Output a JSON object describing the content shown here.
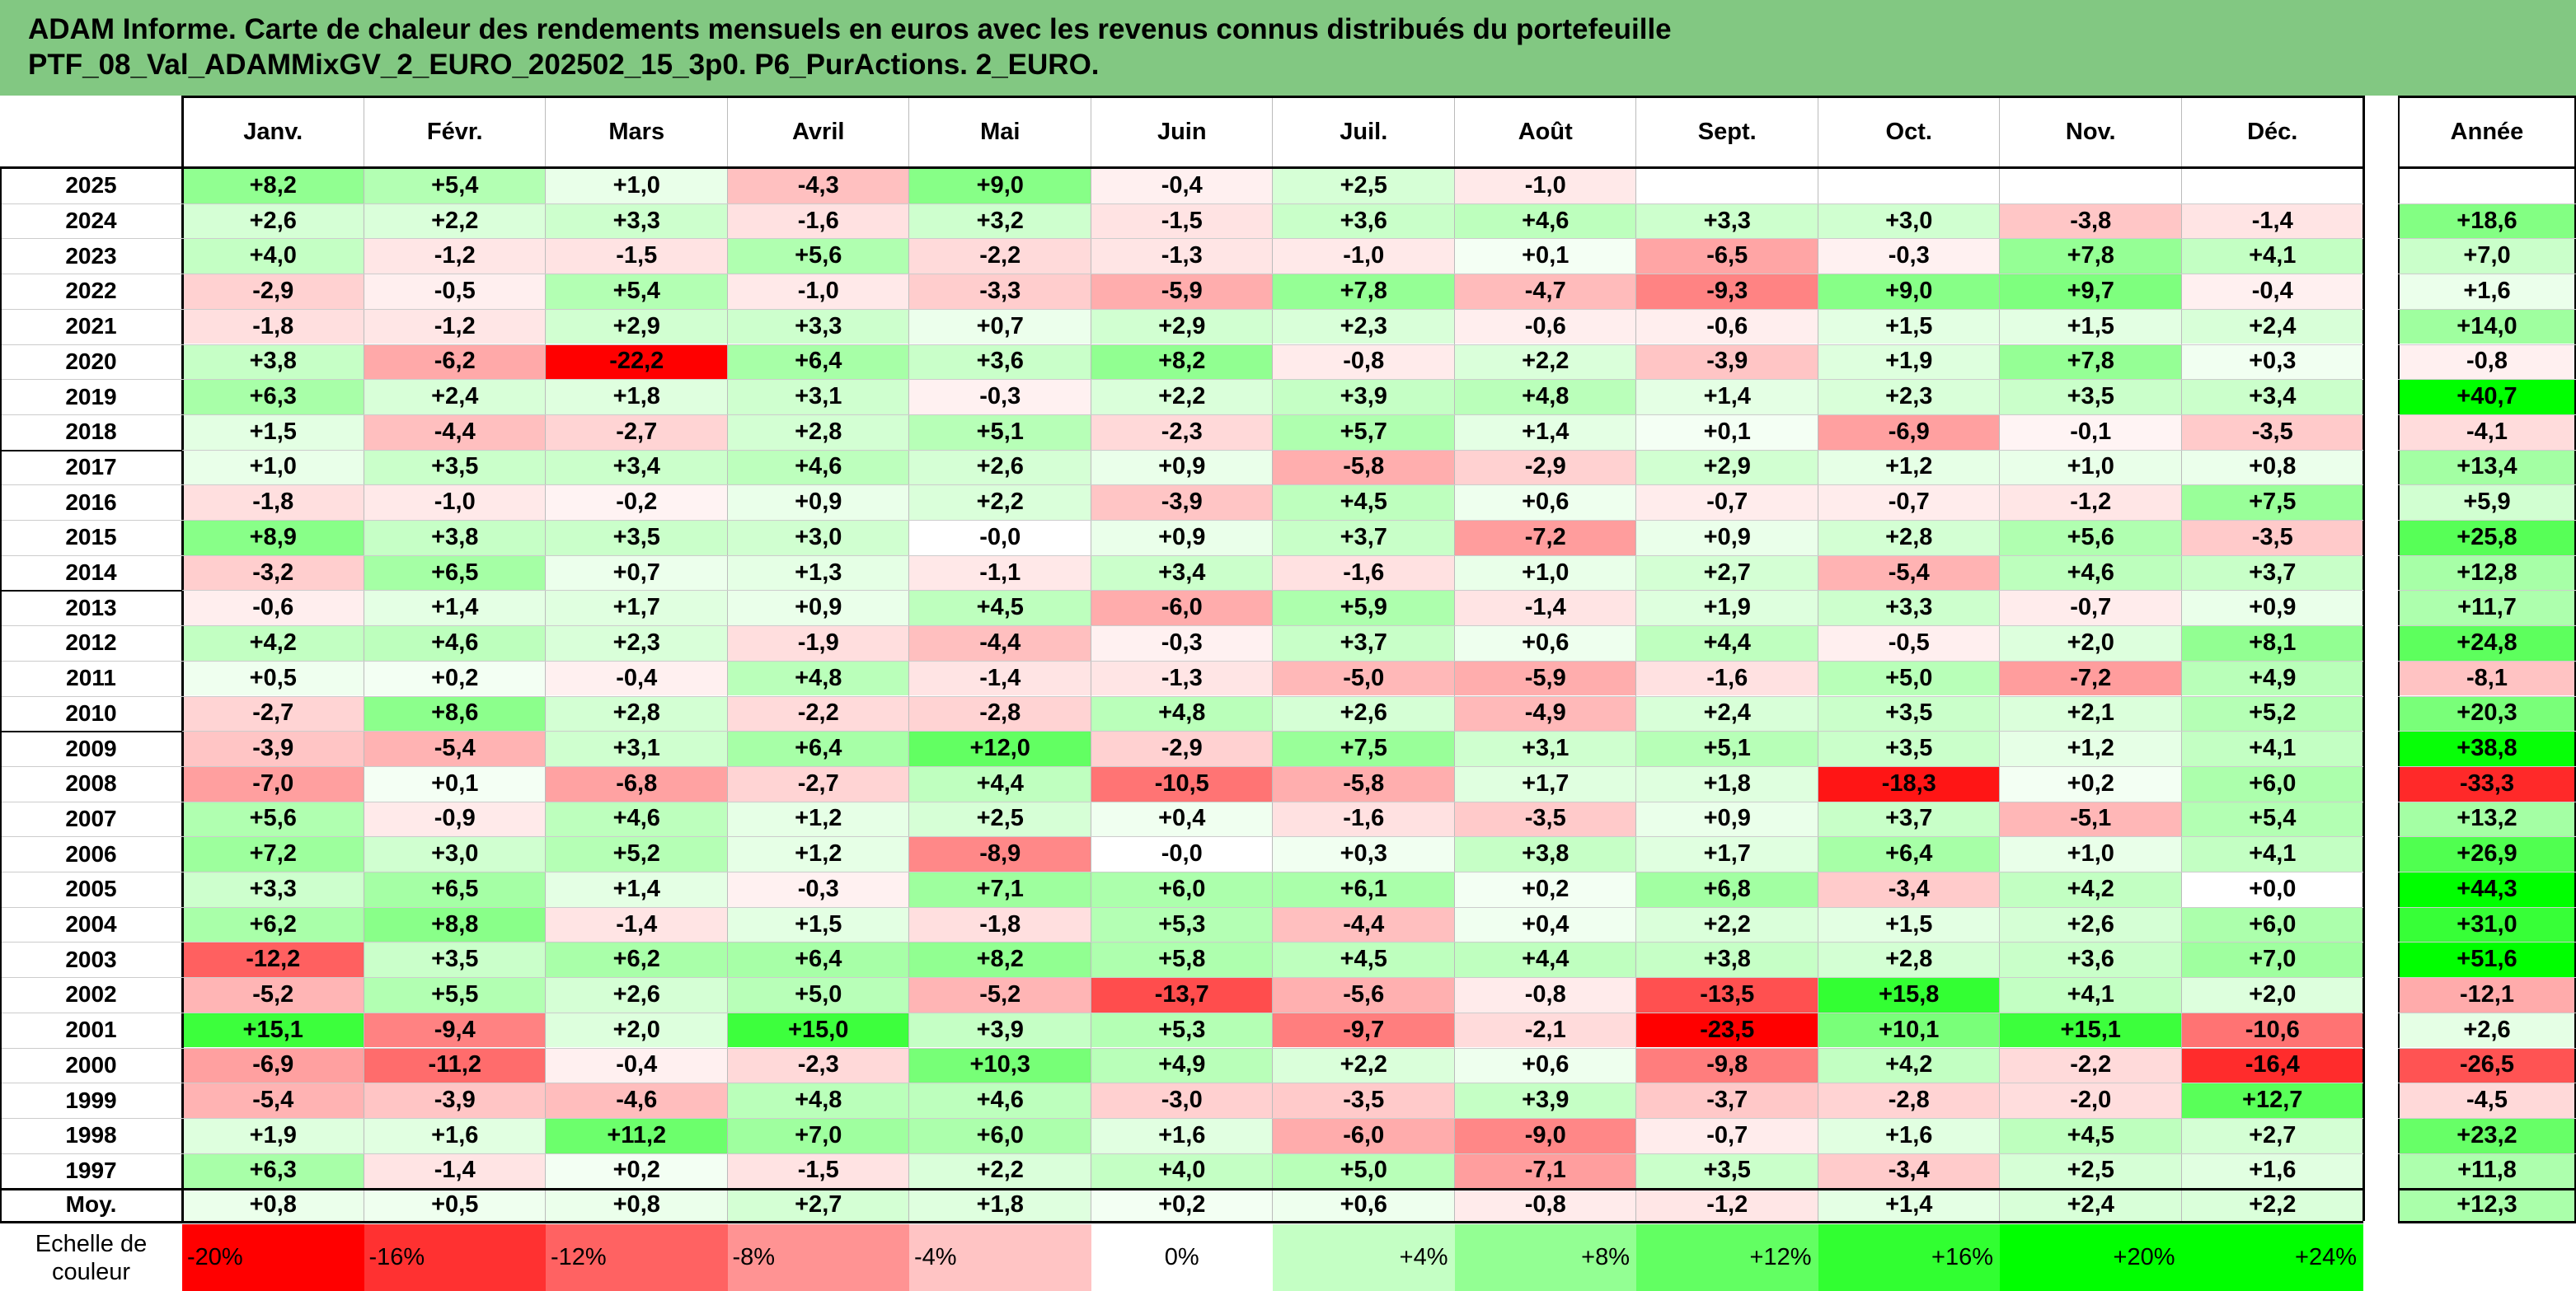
{
  "title": {
    "line1": "ADAM Informe. Carte de chaleur des rendements mensuels en euros avec les revenus connus distribués du portefeuille",
    "line2": "PTF_08_Val_ADAMMixGV_2_EURO_202502_15_3p0. P6_PurActions. 2_EURO."
  },
  "chart_data": {
    "type": "heatmap",
    "columns": [
      "Janv.",
      "Févr.",
      "Mars",
      "Avril",
      "Mai",
      "Juin",
      "Juil.",
      "Août",
      "Sept.",
      "Oct.",
      "Nov.",
      "Déc."
    ],
    "year_column": "Année",
    "rows": [
      {
        "year": "2025",
        "values": [
          "+8,2",
          "+5,4",
          "+1,0",
          "-4,3",
          "+9,0",
          "-0,4",
          "+2,5",
          "-1,0",
          "",
          "",
          "",
          ""
        ],
        "annual": ""
      },
      {
        "year": "2024",
        "values": [
          "+2,6",
          "+2,2",
          "+3,3",
          "-1,6",
          "+3,2",
          "-1,5",
          "+3,6",
          "+4,6",
          "+3,3",
          "+3,0",
          "-3,8",
          "-1,4"
        ],
        "annual": "+18,6"
      },
      {
        "year": "2023",
        "values": [
          "+4,0",
          "-1,2",
          "-1,5",
          "+5,6",
          "-2,2",
          "-1,3",
          "-1,0",
          "+0,1",
          "-6,5",
          "-0,3",
          "+7,8",
          "+4,1"
        ],
        "annual": "+7,0"
      },
      {
        "year": "2022",
        "values": [
          "-2,9",
          "-0,5",
          "+5,4",
          "-1,0",
          "-3,3",
          "-5,9",
          "+7,8",
          "-4,7",
          "-9,3",
          "+9,0",
          "+9,7",
          "-0,4"
        ],
        "annual": "+1,6"
      },
      {
        "year": "2021",
        "values": [
          "-1,8",
          "-1,2",
          "+2,9",
          "+3,3",
          "+0,7",
          "+2,9",
          "+2,3",
          "-0,6",
          "-0,6",
          "+1,5",
          "+1,5",
          "+2,4"
        ],
        "annual": "+14,0"
      },
      {
        "year": "2020",
        "values": [
          "+3,8",
          "-6,2",
          "-22,2",
          "+6,4",
          "+3,6",
          "+8,2",
          "-0,8",
          "+2,2",
          "-3,9",
          "+1,9",
          "+7,8",
          "+0,3"
        ],
        "annual": "-0,8"
      },
      {
        "year": "2019",
        "values": [
          "+6,3",
          "+2,4",
          "+1,8",
          "+3,1",
          "-0,3",
          "+2,2",
          "+3,9",
          "+4,8",
          "+1,4",
          "+2,3",
          "+3,5",
          "+3,4"
        ],
        "annual": "+40,7"
      },
      {
        "year": "2018",
        "values": [
          "+1,5",
          "-4,4",
          "-2,7",
          "+2,8",
          "+5,1",
          "-2,3",
          "+5,7",
          "+1,4",
          "+0,1",
          "-6,9",
          "-0,1",
          "-3,5"
        ],
        "annual": "-4,1"
      },
      {
        "year": "2017",
        "values": [
          "+1,0",
          "+3,5",
          "+3,4",
          "+4,6",
          "+2,6",
          "+0,9",
          "-5,8",
          "-2,9",
          "+2,9",
          "+1,2",
          "+1,0",
          "+0,8"
        ],
        "annual": "+13,4"
      },
      {
        "year": "2016",
        "values": [
          "-1,8",
          "-1,0",
          "-0,2",
          "+0,9",
          "+2,2",
          "-3,9",
          "+4,5",
          "+0,6",
          "-0,7",
          "-0,7",
          "-1,2",
          "+7,5"
        ],
        "annual": "+5,9"
      },
      {
        "year": "2015",
        "values": [
          "+8,9",
          "+3,8",
          "+3,5",
          "+3,0",
          "-0,0",
          "+0,9",
          "+3,7",
          "-7,2",
          "+0,9",
          "+2,8",
          "+5,6",
          "-3,5"
        ],
        "annual": "+25,8"
      },
      {
        "year": "2014",
        "values": [
          "-3,2",
          "+6,5",
          "+0,7",
          "+1,3",
          "-1,1",
          "+3,4",
          "-1,6",
          "+1,0",
          "+2,7",
          "-5,4",
          "+4,6",
          "+3,7"
        ],
        "annual": "+12,8"
      },
      {
        "year": "2013",
        "values": [
          "-0,6",
          "+1,4",
          "+1,7",
          "+0,9",
          "+4,5",
          "-6,0",
          "+5,9",
          "-1,4",
          "+1,9",
          "+3,3",
          "-0,7",
          "+0,9"
        ],
        "annual": "+11,7"
      },
      {
        "year": "2012",
        "values": [
          "+4,2",
          "+4,6",
          "+2,3",
          "-1,9",
          "-4,4",
          "-0,3",
          "+3,7",
          "+0,6",
          "+4,4",
          "-0,5",
          "+2,0",
          "+8,1"
        ],
        "annual": "+24,8"
      },
      {
        "year": "2011",
        "values": [
          "+0,5",
          "+0,2",
          "-0,4",
          "+4,8",
          "-1,4",
          "-1,3",
          "-5,0",
          "-5,9",
          "-1,6",
          "+5,0",
          "-7,2",
          "+4,9"
        ],
        "annual": "-8,1"
      },
      {
        "year": "2010",
        "values": [
          "-2,7",
          "+8,6",
          "+2,8",
          "-2,2",
          "-2,8",
          "+4,8",
          "+2,6",
          "-4,9",
          "+2,4",
          "+3,5",
          "+2,1",
          "+5,2"
        ],
        "annual": "+20,3"
      },
      {
        "year": "2009",
        "values": [
          "-3,9",
          "-5,4",
          "+3,1",
          "+6,4",
          "+12,0",
          "-2,9",
          "+7,5",
          "+3,1",
          "+5,1",
          "+3,5",
          "+1,2",
          "+4,1"
        ],
        "annual": "+38,8"
      },
      {
        "year": "2008",
        "values": [
          "-7,0",
          "+0,1",
          "-6,8",
          "-2,7",
          "+4,4",
          "-10,5",
          "-5,8",
          "+1,7",
          "+1,8",
          "-18,3",
          "+0,2",
          "+6,0"
        ],
        "annual": "-33,3"
      },
      {
        "year": "2007",
        "values": [
          "+5,6",
          "-0,9",
          "+4,6",
          "+1,2",
          "+2,5",
          "+0,4",
          "-1,6",
          "-3,5",
          "+0,9",
          "+3,7",
          "-5,1",
          "+5,4"
        ],
        "annual": "+13,2"
      },
      {
        "year": "2006",
        "values": [
          "+7,2",
          "+3,0",
          "+5,2",
          "+1,2",
          "-8,9",
          "-0,0",
          "+0,3",
          "+3,8",
          "+1,7",
          "+6,4",
          "+1,0",
          "+4,1"
        ],
        "annual": "+26,9"
      },
      {
        "year": "2005",
        "values": [
          "+3,3",
          "+6,5",
          "+1,4",
          "-0,3",
          "+7,1",
          "+6,0",
          "+6,1",
          "+0,2",
          "+6,8",
          "-3,4",
          "+4,2",
          "+0,0"
        ],
        "annual": "+44,3"
      },
      {
        "year": "2004",
        "values": [
          "+6,2",
          "+8,8",
          "-1,4",
          "+1,5",
          "-1,8",
          "+5,3",
          "-4,4",
          "+0,4",
          "+2,2",
          "+1,5",
          "+2,6",
          "+6,0"
        ],
        "annual": "+31,0"
      },
      {
        "year": "2003",
        "values": [
          "-12,2",
          "+3,5",
          "+6,2",
          "+6,4",
          "+8,2",
          "+5,8",
          "+4,5",
          "+4,4",
          "+3,8",
          "+2,8",
          "+3,6",
          "+7,0"
        ],
        "annual": "+51,6"
      },
      {
        "year": "2002",
        "values": [
          "-5,2",
          "+5,5",
          "+2,6",
          "+5,0",
          "-5,2",
          "-13,7",
          "-5,6",
          "-0,8",
          "-13,5",
          "+15,8",
          "+4,1",
          "+2,0"
        ],
        "annual": "-12,1"
      },
      {
        "year": "2001",
        "values": [
          "+15,1",
          "-9,4",
          "+2,0",
          "+15,0",
          "+3,9",
          "+5,3",
          "-9,7",
          "-2,1",
          "-23,5",
          "+10,1",
          "+15,1",
          "-10,6"
        ],
        "annual": "+2,6"
      },
      {
        "year": "2000",
        "values": [
          "-6,9",
          "-11,2",
          "-0,4",
          "-2,3",
          "+10,3",
          "+4,9",
          "+2,2",
          "+0,6",
          "-9,8",
          "+4,2",
          "-2,2",
          "-16,4"
        ],
        "annual": "-26,5"
      },
      {
        "year": "1999",
        "values": [
          "-5,4",
          "-3,9",
          "-4,6",
          "+4,8",
          "+4,6",
          "-3,0",
          "-3,5",
          "+3,9",
          "-3,7",
          "-2,8",
          "-2,0",
          "+12,7"
        ],
        "annual": "-4,5"
      },
      {
        "year": "1998",
        "values": [
          "+1,9",
          "+1,6",
          "+11,2",
          "+7,0",
          "+6,0",
          "+1,6",
          "-6,0",
          "-9,0",
          "-0,7",
          "+1,6",
          "+4,5",
          "+2,7"
        ],
        "annual": "+23,2"
      },
      {
        "year": "1997",
        "values": [
          "+6,3",
          "-1,4",
          "+0,2",
          "-1,5",
          "+2,2",
          "+4,0",
          "+5,0",
          "-7,1",
          "+3,5",
          "-3,4",
          "+2,5",
          "+1,6"
        ],
        "annual": "+11,8"
      }
    ],
    "average": {
      "label": "Moy.",
      "values": [
        "+0,8",
        "+0,5",
        "+0,8",
        "+2,7",
        "+1,8",
        "+0,2",
        "+0,6",
        "-0,8",
        "-1,2",
        "+1,4",
        "+2,4",
        "+2,2"
      ],
      "annual": "+12,3"
    },
    "scale": {
      "label_line1": "Echelle de",
      "label_line2": "couleur",
      "steps": [
        "-20%",
        "-16%",
        "-12%",
        "-8%",
        "-4%",
        "0%",
        "+4%",
        "+8%",
        "+12%",
        "+16%",
        "+20%",
        "+24%"
      ],
      "step_values": [
        -20,
        -16,
        -12,
        -8,
        -4,
        0,
        4,
        8,
        12,
        16,
        20,
        24
      ]
    },
    "colors": {
      "negative_max": "#ff0000",
      "neutral": "#ffffff",
      "positive_max": "#00ff00",
      "title_background": "#82c882"
    }
  }
}
